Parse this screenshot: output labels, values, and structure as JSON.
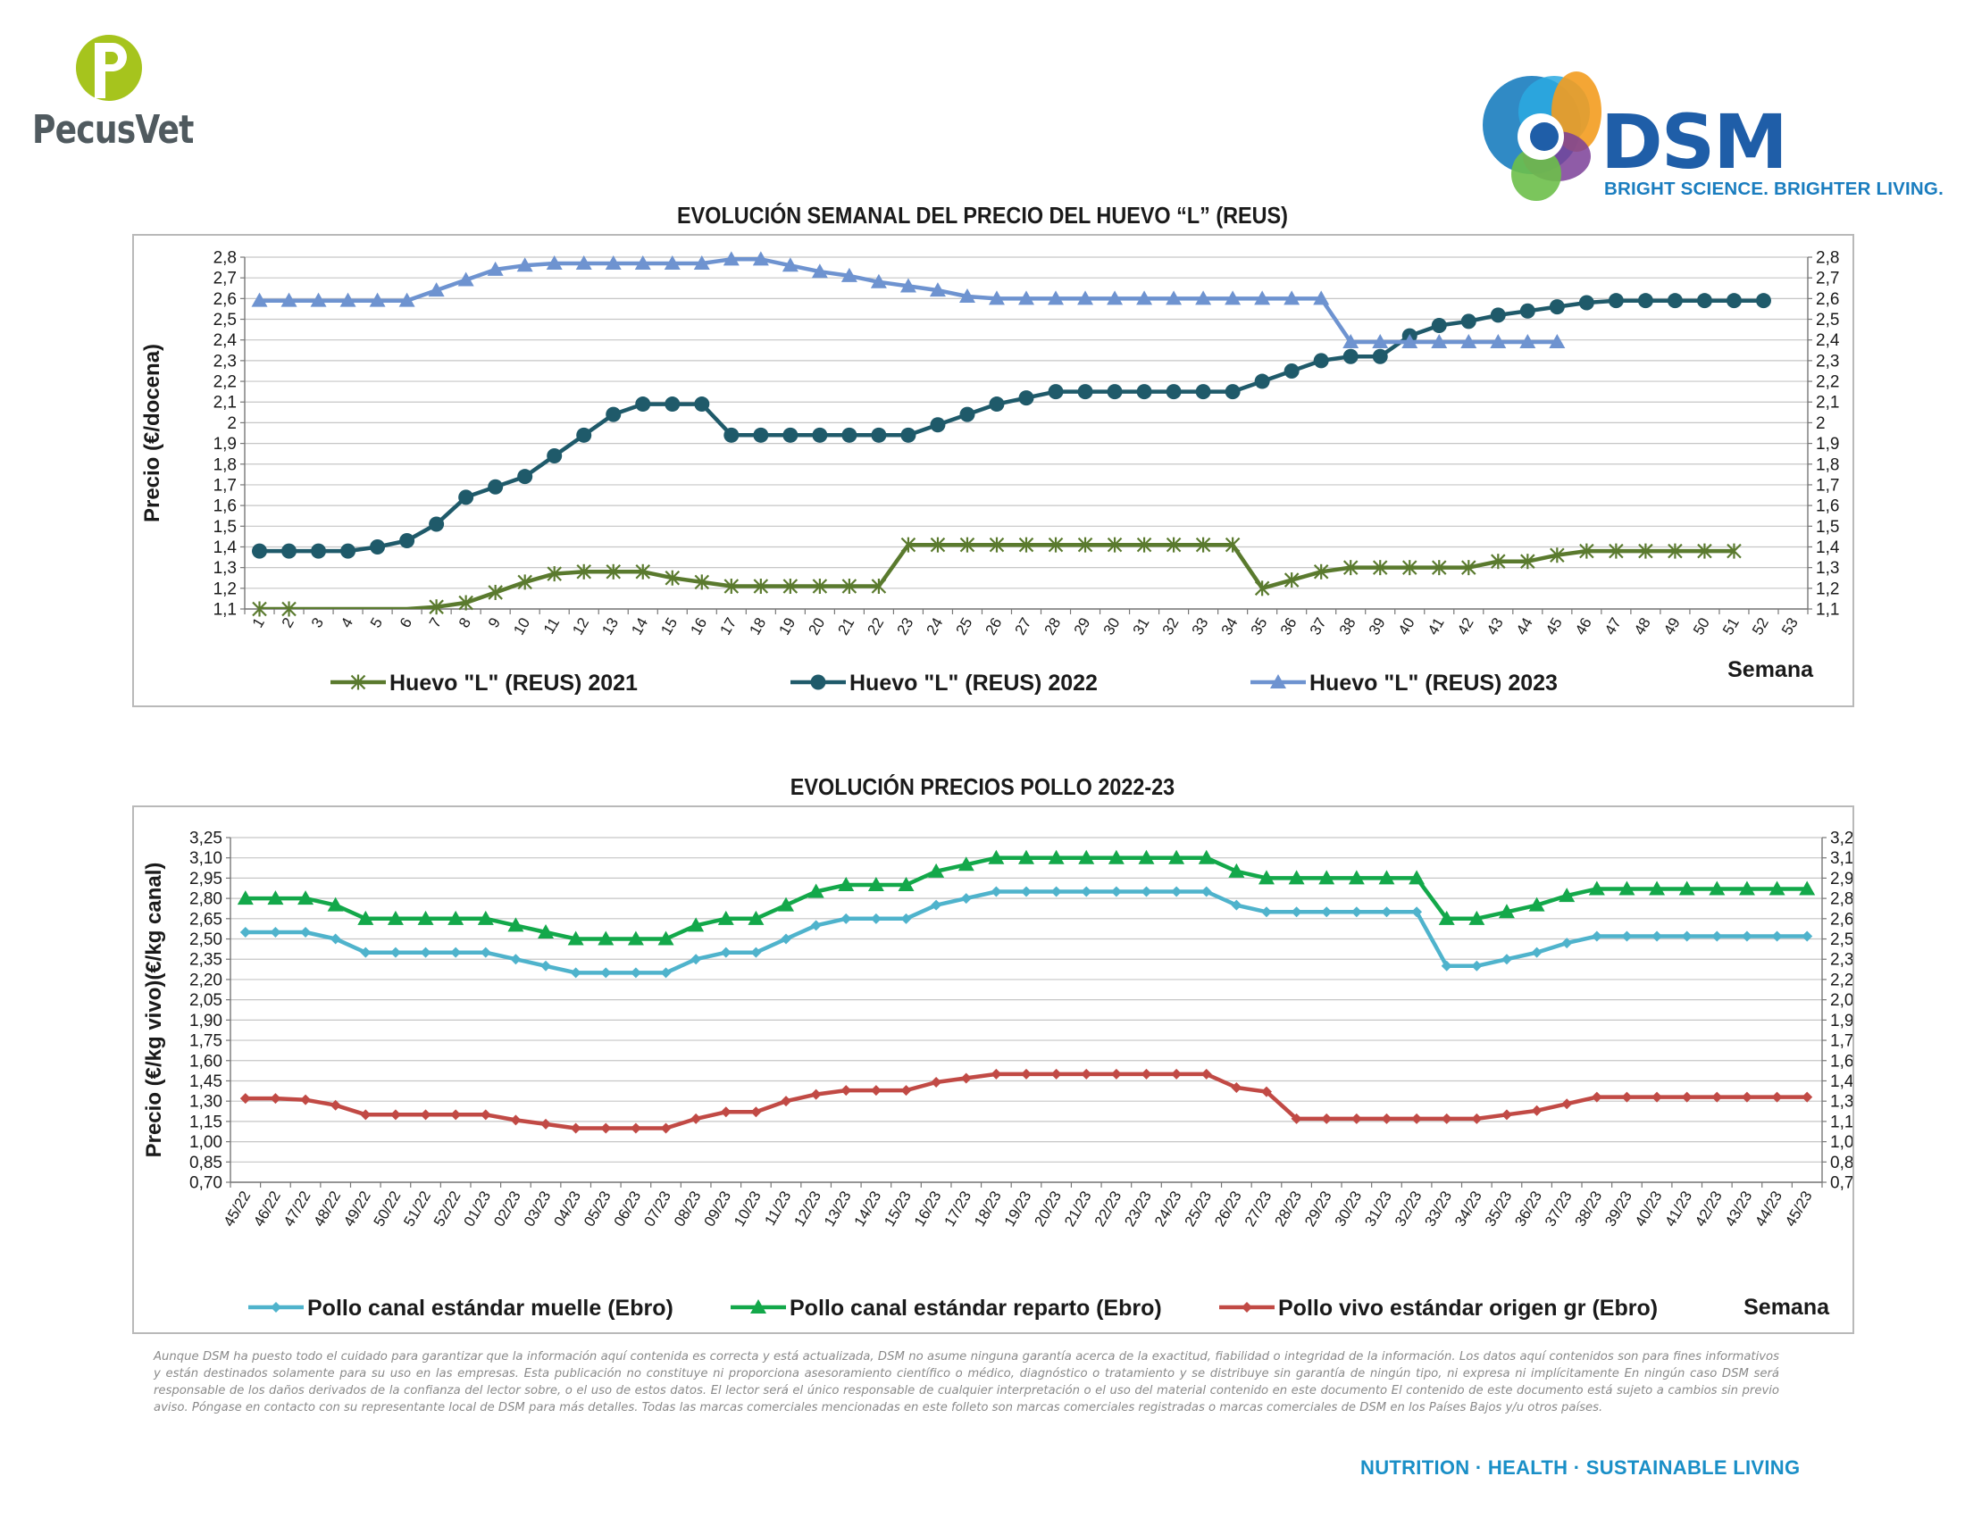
{
  "brand": {
    "pecusvet": "PecusVet",
    "dsm": "DSM",
    "dsm_tagline": "BRIGHT SCIENCE. BRIGHTER LIVING."
  },
  "colors": {
    "green_2021": "#5a7a2e",
    "teal_2022": "#1f5a6a",
    "blue_2023": "#6e93d0",
    "muelle": "#4fb3cc",
    "reparto": "#13a84a",
    "vivo": "#c14a45",
    "grid": "#c6c6c6",
    "frame": "#b9b9b9",
    "dsm_blue": "#1f5ea8",
    "footer_blue": "#1a8fc7"
  },
  "chart_data": [
    {
      "type": "line",
      "title": "EVOLUCIÓN SEMANAL DEL PRECIO DEL HUEVO “L” (REUS)",
      "ylabel": "Precio (€/docena)",
      "xlabel": "Semana",
      "ylim": [
        1.1,
        2.8
      ],
      "ytick_step": 0.1,
      "ytick_labels": [
        "1,1",
        "1,2",
        "1,3",
        "1,4",
        "1,5",
        "1,6",
        "1,7",
        "1,8",
        "1,9",
        "2",
        "2,1",
        "2,2",
        "2,3",
        "2,4",
        "2,5",
        "2,6",
        "2,7",
        "2,8"
      ],
      "categories": [
        "1",
        "2",
        "3",
        "4",
        "5",
        "6",
        "7",
        "8",
        "9",
        "10",
        "11",
        "12",
        "13",
        "14",
        "15",
        "16",
        "17",
        "18",
        "19",
        "20",
        "21",
        "22",
        "23",
        "24",
        "25",
        "26",
        "27",
        "28",
        "29",
        "30",
        "31",
        "32",
        "33",
        "34",
        "35",
        "36",
        "37",
        "38",
        "39",
        "40",
        "41",
        "42",
        "43",
        "44",
        "45",
        "46",
        "47",
        "48",
        "49",
        "50",
        "51",
        "52",
        "53"
      ],
      "grid": true,
      "legend_position": "bottom",
      "series": [
        {
          "name": "Huevo \"L\" (REUS) 2021",
          "marker": "star",
          "color": "#5a7a2e",
          "values": [
            1.1,
            1.1,
            1.08,
            1.07,
            1.08,
            1.09,
            1.11,
            1.13,
            1.18,
            1.23,
            1.27,
            1.28,
            1.28,
            1.28,
            1.25,
            1.23,
            1.21,
            1.21,
            1.21,
            1.21,
            1.21,
            1.21,
            1.41,
            1.41,
            1.41,
            1.41,
            1.41,
            1.41,
            1.41,
            1.41,
            1.41,
            1.41,
            1.41,
            1.41,
            1.2,
            1.24,
            1.28,
            1.3,
            1.3,
            1.3,
            1.3,
            1.3,
            1.33,
            1.33,
            1.36,
            1.38,
            1.38,
            1.38,
            1.38,
            1.38,
            1.38,
            null,
            null
          ]
        },
        {
          "name": "Huevo \"L\" (REUS) 2022",
          "marker": "circle",
          "color": "#1f5a6a",
          "values": [
            1.38,
            1.38,
            1.38,
            1.38,
            1.4,
            1.43,
            1.51,
            1.64,
            1.69,
            1.74,
            1.84,
            1.94,
            2.04,
            2.09,
            2.09,
            2.09,
            1.94,
            1.94,
            1.94,
            1.94,
            1.94,
            1.94,
            1.94,
            1.99,
            2.04,
            2.09,
            2.12,
            2.15,
            2.15,
            2.15,
            2.15,
            2.15,
            2.15,
            2.15,
            2.2,
            2.25,
            2.3,
            2.32,
            2.32,
            2.42,
            2.47,
            2.49,
            2.52,
            2.54,
            2.56,
            2.58,
            2.59,
            2.59,
            2.59,
            2.59,
            2.59,
            2.59,
            null
          ]
        },
        {
          "name": "Huevo \"L\" (REUS) 2023",
          "marker": "triangle",
          "color": "#6e93d0",
          "values": [
            2.59,
            2.59,
            2.59,
            2.59,
            2.59,
            2.59,
            2.64,
            2.69,
            2.74,
            2.76,
            2.77,
            2.77,
            2.77,
            2.77,
            2.77,
            2.77,
            2.79,
            2.79,
            2.76,
            2.73,
            2.71,
            2.68,
            2.66,
            2.64,
            2.61,
            2.6,
            2.6,
            2.6,
            2.6,
            2.6,
            2.6,
            2.6,
            2.6,
            2.6,
            2.6,
            2.6,
            2.6,
            2.39,
            2.39,
            2.39,
            2.39,
            2.39,
            2.39,
            2.39,
            2.39,
            null,
            null,
            null,
            null,
            null,
            null,
            null,
            null
          ]
        }
      ]
    },
    {
      "type": "line",
      "title": "EVOLUCIÓN PRECIOS POLLO 2022-23",
      "ylabel": "Precio (€/kg vivo)(€/kg canal)",
      "xlabel": "Semana",
      "ylim": [
        0.7,
        3.25
      ],
      "ytick_step": 0.15,
      "ytick_labels": [
        "0,70",
        "0,85",
        "1,00",
        "1,15",
        "1,30",
        "1,45",
        "1,60",
        "1,75",
        "1,90",
        "2,05",
        "2,20",
        "2,35",
        "2,50",
        "2,65",
        "2,80",
        "2,95",
        "3,10",
        "3,25"
      ],
      "categories": [
        "45/22",
        "46/22",
        "47/22",
        "48/22",
        "49/22",
        "50/22",
        "51/22",
        "52/22",
        "01/23",
        "02/23",
        "03/23",
        "04/23",
        "05/23",
        "06/23",
        "07/23",
        "08/23",
        "09/23",
        "10/23",
        "11/23",
        "12/23",
        "13/23",
        "14/23",
        "15/23",
        "16/23",
        "17/23",
        "18/23",
        "19/23",
        "20/23",
        "21/23",
        "22/23",
        "23/23",
        "24/23",
        "25/23",
        "26/23",
        "27/23",
        "28/23",
        "29/23",
        "30/23",
        "31/23",
        "32/23",
        "33/23",
        "34/23",
        "35/23",
        "36/23",
        "37/23",
        "38/23",
        "39/23",
        "40/23",
        "41/23",
        "42/23",
        "43/23",
        "44/23",
        "45/23"
      ],
      "grid": true,
      "legend_position": "bottom",
      "series": [
        {
          "name": "Pollo canal estándar muelle (Ebro)",
          "marker": "diamond",
          "color": "#4fb3cc",
          "values": [
            2.55,
            2.55,
            2.55,
            2.5,
            2.4,
            2.4,
            2.4,
            2.4,
            2.4,
            2.35,
            2.3,
            2.25,
            2.25,
            2.25,
            2.25,
            2.35,
            2.4,
            2.4,
            2.5,
            2.6,
            2.65,
            2.65,
            2.65,
            2.75,
            2.8,
            2.85,
            2.85,
            2.85,
            2.85,
            2.85,
            2.85,
            2.85,
            2.85,
            2.75,
            2.7,
            2.7,
            2.7,
            2.7,
            2.7,
            2.7,
            2.3,
            2.3,
            2.35,
            2.4,
            2.47,
            2.52,
            2.52,
            2.52,
            2.52,
            2.52,
            2.52,
            2.52,
            2.52
          ]
        },
        {
          "name": "Pollo canal estándar reparto (Ebro)",
          "marker": "triangle",
          "color": "#13a84a",
          "values": [
            2.8,
            2.8,
            2.8,
            2.75,
            2.65,
            2.65,
            2.65,
            2.65,
            2.65,
            2.6,
            2.55,
            2.5,
            2.5,
            2.5,
            2.5,
            2.6,
            2.65,
            2.65,
            2.75,
            2.85,
            2.9,
            2.9,
            2.9,
            3.0,
            3.05,
            3.1,
            3.1,
            3.1,
            3.1,
            3.1,
            3.1,
            3.1,
            3.1,
            3.0,
            2.95,
            2.95,
            2.95,
            2.95,
            2.95,
            2.95,
            2.65,
            2.65,
            2.7,
            2.75,
            2.82,
            2.87,
            2.87,
            2.87,
            2.87,
            2.87,
            2.87,
            2.87,
            2.87
          ]
        },
        {
          "name": "Pollo vivo estándar origen gr (Ebro)",
          "marker": "diamond",
          "color": "#c14a45",
          "values": [
            1.32,
            1.32,
            1.31,
            1.27,
            1.2,
            1.2,
            1.2,
            1.2,
            1.2,
            1.16,
            1.13,
            1.1,
            1.1,
            1.1,
            1.1,
            1.17,
            1.22,
            1.22,
            1.3,
            1.35,
            1.38,
            1.38,
            1.38,
            1.44,
            1.47,
            1.5,
            1.5,
            1.5,
            1.5,
            1.5,
            1.5,
            1.5,
            1.5,
            1.4,
            1.37,
            1.17,
            1.17,
            1.17,
            1.17,
            1.17,
            1.17,
            1.17,
            1.2,
            1.23,
            1.28,
            1.33,
            1.33,
            1.33,
            1.33,
            1.33,
            1.33,
            1.33,
            1.33
          ]
        }
      ]
    }
  ],
  "disclaimer": "Aunque DSM ha puesto todo el cuidado para garantizar que la información aquí contenida es correcta y está actualizada, DSM no asume ninguna garantía acerca de la exactitud, fiabilidad o integridad de la información. Los datos aquí contenidos son para fines informativos y están destinados solamente para su uso en las empresas. Esta publicación no constituye ni proporciona asesoramiento científico o médico, diagnóstico o tratamiento y se distribuye sin garantía de ningún tipo, ni expresa ni implícitamente En ningún caso DSM será responsable de los daños derivados de la confianza del lector sobre, o el uso de estos datos. El lector será el único responsable de cualquier interpretación o el uso del material contenido en este documento El contenido de este documento está sujeto a cambios sin previo aviso. Póngase en contacto con su representante local de DSM para más detalles. Todas las marcas comerciales mencionadas en este folleto son marcas comerciales registradas o marcas comerciales de DSM en los Países Bajos y/u otros países.",
  "footer": "NUTRITION · HEALTH · SUSTAINABLE LIVING"
}
